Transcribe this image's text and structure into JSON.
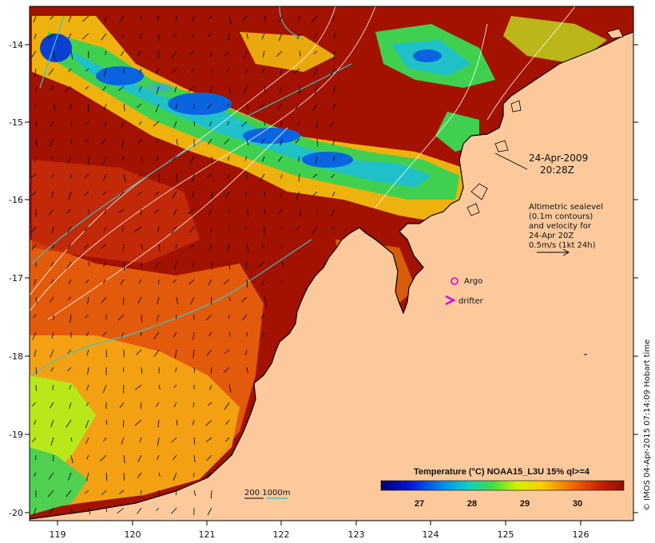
{
  "map": {
    "date": "24-Apr-2009",
    "time": "20:28Z",
    "lon_ticks": [
      "119",
      "120",
      "121",
      "122",
      "123",
      "124",
      "125",
      "126"
    ],
    "lat_ticks": [
      "-14",
      "-15",
      "-16",
      "-17",
      "-18",
      "-19",
      "-20"
    ],
    "altimetry_note": {
      "line1": "Altimetric sealevel",
      "line2": "(0.1m contours)",
      "line3": "and velocity for",
      "line4": "24-Apr 20Z",
      "line5": "0.5m/s (1kt 24h)"
    },
    "legend": {
      "argo": "Argo",
      "drifter": "drifter",
      "depth": "200  1000m"
    },
    "colorbar": {
      "title": "Temperature (°C) NOAA15_L3U 15% ql>=4",
      "ticks": [
        "27",
        "28",
        "29",
        "30"
      ]
    },
    "credit": "© IMOS 04-Apr-2015 07:14:09 Hobart time"
  },
  "colors": {
    "land": "#fcc99c",
    "warm": "#a31200",
    "orange": "#e05a0a",
    "cool": "#0b5fe0",
    "argo": "#e000e0",
    "isobath": "#3cc4c4"
  },
  "chart_data": {
    "type": "heatmap",
    "lon_range": [
      118.6,
      126.7
    ],
    "lat_range": [
      -20.1,
      -13.6
    ],
    "temperature_scale": [
      26.3,
      30.9
    ]
  }
}
